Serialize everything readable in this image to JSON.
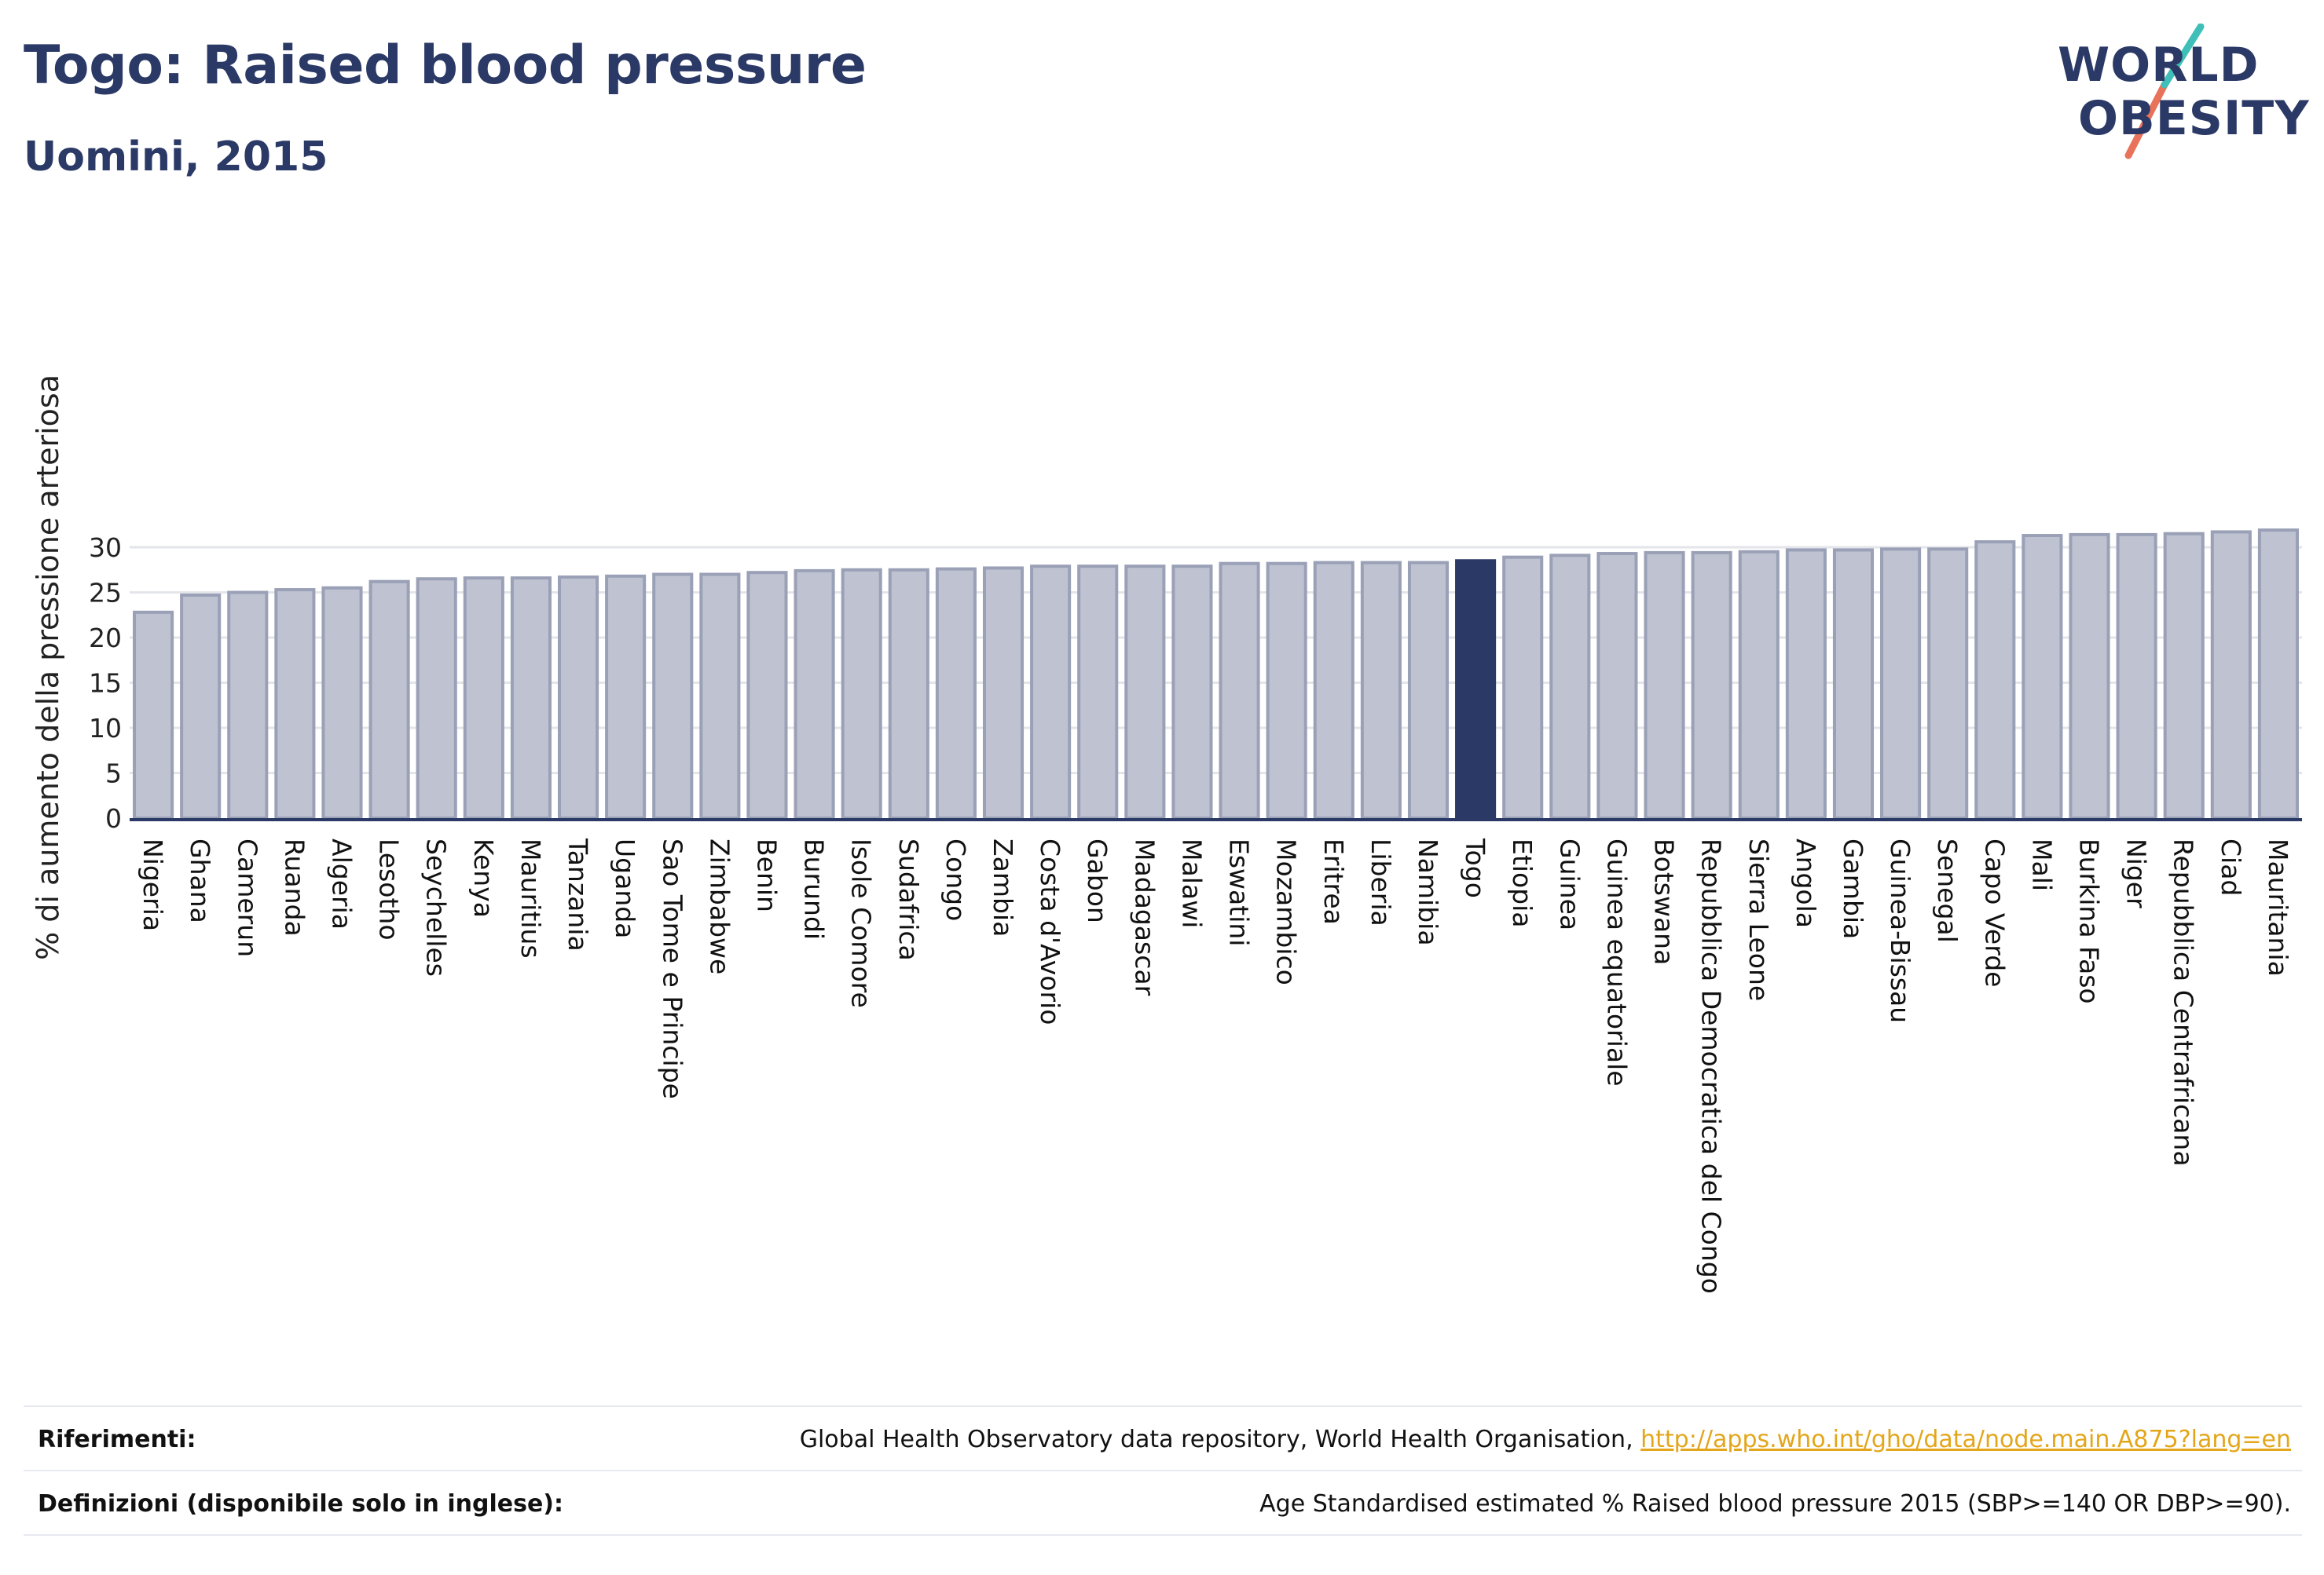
{
  "header": {
    "title": "Togo: Raised blood pressure",
    "subtitle": "Uomini, 2015"
  },
  "logo": {
    "line1": "WORLD",
    "line2": "OBESITY",
    "slash_colors": [
      "#3fbfb7",
      "#e8735a"
    ]
  },
  "colors": {
    "bar": "#bfc3d1",
    "bar_border": "#9aa0b6",
    "highlight": "#2b3966",
    "grid": "#e3e5ea",
    "axis": "#2b3966"
  },
  "chart_data": {
    "type": "bar",
    "title": "Togo: Raised blood pressure",
    "subtitle": "Uomini, 2015",
    "xlabel": "",
    "ylabel": "% di aumento della pressione arteriosa",
    "ylim": [
      0,
      33
    ],
    "yticks": [
      0,
      5,
      10,
      15,
      20,
      25,
      30
    ],
    "grid": true,
    "highlight": "Togo",
    "categories": [
      "Nigeria",
      "Ghana",
      "Camerun",
      "Ruanda",
      "Algeria",
      "Lesotho",
      "Seychelles",
      "Kenya",
      "Mauritius",
      "Tanzania",
      "Uganda",
      "Sao Tome e Principe",
      "Zimbabwe",
      "Benin",
      "Burundi",
      "Isole Comore",
      "Sudafrica",
      "Congo",
      "Zambia",
      "Costa d'Avorio",
      "Gabon",
      "Madagascar",
      "Malawi",
      "Eswatini",
      "Mozambico",
      "Eritrea",
      "Liberia",
      "Namibia",
      "Togo",
      "Etiopia",
      "Guinea",
      "Guinea equatoriale",
      "Botswana",
      "Repubblica Democratica del Congo",
      "Sierra Leone",
      "Angola",
      "Gambia",
      "Guinea-Bissau",
      "Senegal",
      "Capo Verde",
      "Mali",
      "Burkina Faso",
      "Niger",
      "Repubblica Centrafricana",
      "Ciad",
      "Mauritania"
    ],
    "values": [
      22.8,
      24.7,
      25.0,
      25.3,
      25.5,
      26.2,
      26.5,
      26.6,
      26.6,
      26.7,
      26.8,
      27.0,
      27.0,
      27.2,
      27.4,
      27.5,
      27.5,
      27.6,
      27.7,
      27.9,
      27.9,
      27.9,
      27.9,
      28.2,
      28.2,
      28.3,
      28.3,
      28.3,
      28.5,
      28.9,
      29.1,
      29.3,
      29.4,
      29.4,
      29.5,
      29.7,
      29.7,
      29.8,
      29.8,
      30.6,
      31.3,
      31.4,
      31.4,
      31.5,
      31.7,
      31.9
    ]
  },
  "footer": {
    "references_label": "Riferimenti:",
    "references_text": "Global Health Observatory data repository, World Health Organisation, ",
    "references_link": "http://apps.who.int/gho/data/node.main.A875?lang=en",
    "definitions_label": "Definizioni (disponibile solo in inglese):",
    "definitions_text": "Age Standardised estimated % Raised blood pressure 2015 (SBP>=140 OR DBP>=90)."
  }
}
